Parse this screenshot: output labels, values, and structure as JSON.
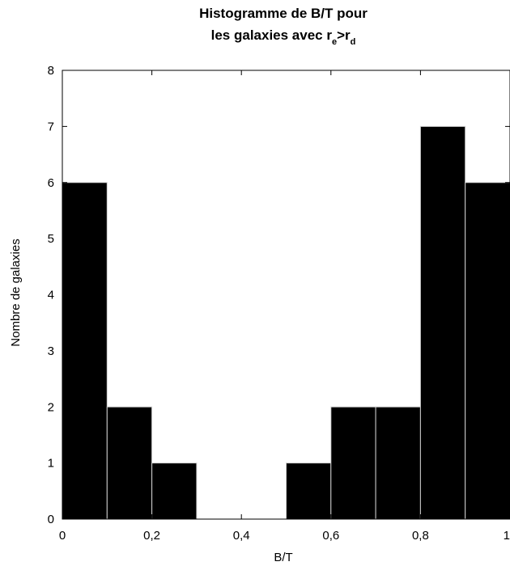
{
  "chart_data": {
    "type": "bar",
    "title_line1": "Histogramme de B/T pour",
    "title_line2_prefix": "les galaxies avec r",
    "title_sub1": "e",
    "title_op": ">r",
    "title_sub2": "d",
    "xlabel": "B/T",
    "ylabel": "Nombre de galaxies",
    "xlim": [
      0,
      1
    ],
    "ylim": [
      0,
      8
    ],
    "xticks": [
      {
        "value": 0,
        "label": "0"
      },
      {
        "value": 0.2,
        "label": "0,2"
      },
      {
        "value": 0.4,
        "label": "0,4"
      },
      {
        "value": 0.6,
        "label": "0,6"
      },
      {
        "value": 0.8,
        "label": "0,8"
      },
      {
        "value": 1.0,
        "label": "1"
      }
    ],
    "yticks": [
      {
        "value": 0,
        "label": "0"
      },
      {
        "value": 1,
        "label": "1"
      },
      {
        "value": 2,
        "label": "2"
      },
      {
        "value": 3,
        "label": "3"
      },
      {
        "value": 4,
        "label": "4"
      },
      {
        "value": 5,
        "label": "5"
      },
      {
        "value": 6,
        "label": "6"
      },
      {
        "value": 7,
        "label": "7"
      },
      {
        "value": 8,
        "label": "8"
      }
    ],
    "bins": [
      {
        "x0": 0.0,
        "x1": 0.1,
        "count": 6
      },
      {
        "x0": 0.1,
        "x1": 0.2,
        "count": 2
      },
      {
        "x0": 0.2,
        "x1": 0.3,
        "count": 1
      },
      {
        "x0": 0.3,
        "x1": 0.4,
        "count": 0
      },
      {
        "x0": 0.4,
        "x1": 0.5,
        "count": 0
      },
      {
        "x0": 0.5,
        "x1": 0.6,
        "count": 1
      },
      {
        "x0": 0.6,
        "x1": 0.7,
        "count": 2
      },
      {
        "x0": 0.7,
        "x1": 0.8,
        "count": 2
      },
      {
        "x0": 0.8,
        "x1": 0.9,
        "count": 7
      },
      {
        "x0": 0.9,
        "x1": 1.0,
        "count": 6
      }
    ],
    "bar_color": "#000000",
    "bar_edge_color": "#d0d0d0",
    "grid": false
  }
}
